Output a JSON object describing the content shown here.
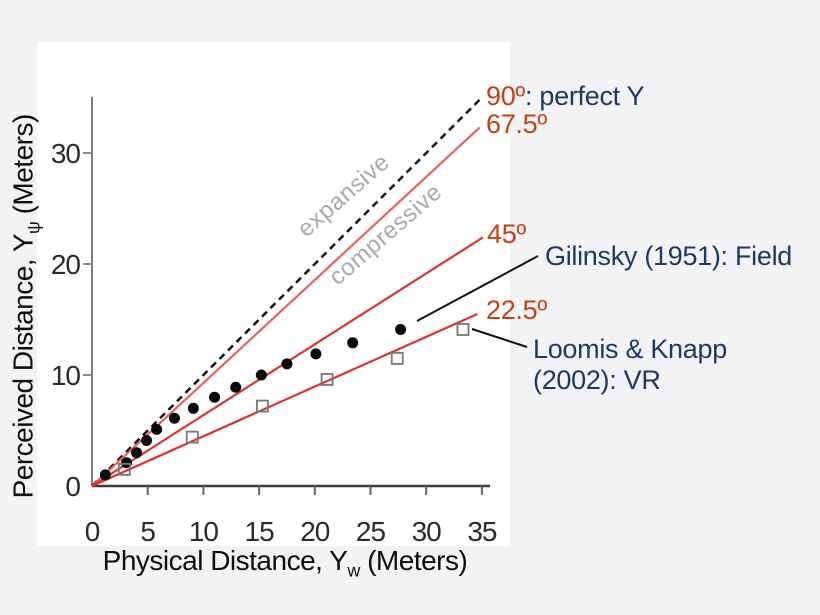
{
  "figure": {
    "bg_color": "#f3f3f5",
    "panel_color": "#ffffff"
  },
  "chart_data": {
    "type": "scatter",
    "title": "",
    "xlabel_pre": "Physical Distance, Y",
    "xlabel_sub": "w",
    "xlabel_post": " (Meters)",
    "ylabel_pre": "Perceived Distance, Y",
    "ylabel_sub": "ψ",
    "ylabel_post": " (Meters)",
    "xlim": [
      0,
      35.6
    ],
    "ylim": [
      0,
      35
    ],
    "x_ticks": [
      0,
      5,
      10,
      15,
      20,
      25,
      30,
      35
    ],
    "y_ticks": [
      0,
      10,
      20,
      30
    ],
    "grid": false,
    "legend_position": "annotated-right",
    "reference_lines": [
      {
        "name": "gain-90",
        "label": "90º",
        "label_suffix": ": perfect Y",
        "style": "dashed",
        "color": "#111111",
        "x": [
          0,
          34.8
        ],
        "y": [
          0,
          34.8
        ]
      },
      {
        "name": "gain-67.5",
        "label": "67.5º",
        "style": "solid",
        "color": "#e86060",
        "x": [
          0,
          34.8
        ],
        "y": [
          0,
          32.3
        ]
      },
      {
        "name": "gain-45",
        "label": "45º",
        "style": "solid",
        "color": "#dd3333",
        "x": [
          0,
          35.1
        ],
        "y": [
          0,
          22.4
        ]
      },
      {
        "name": "gain-22.5",
        "label": "22.5º",
        "style": "solid",
        "color": "#dd3333",
        "x": [
          0,
          34.6
        ],
        "y": [
          0,
          15.5
        ]
      }
    ],
    "series": [
      {
        "name": "Gilinsky (1951): Field",
        "marker": "filled-circle",
        "color": "#0a0a0a",
        "points": [
          [
            1.2,
            1.0
          ],
          [
            3.1,
            2.1
          ],
          [
            4.0,
            3.0
          ],
          [
            4.9,
            4.1
          ],
          [
            5.8,
            5.1
          ],
          [
            7.4,
            6.1
          ],
          [
            9.1,
            7.0
          ],
          [
            11.0,
            8.0
          ],
          [
            12.9,
            8.9
          ],
          [
            15.2,
            10.0
          ],
          [
            17.5,
            11.0
          ],
          [
            20.1,
            11.9
          ],
          [
            23.4,
            12.9
          ],
          [
            27.7,
            14.1
          ]
        ]
      },
      {
        "name": "Loomis & Knapp (2002): VR",
        "marker": "open-square",
        "color": "#777777",
        "points": [
          [
            2.9,
            1.5
          ],
          [
            9.0,
            4.4
          ],
          [
            15.3,
            7.2
          ],
          [
            21.1,
            9.6
          ],
          [
            27.4,
            11.5
          ],
          [
            33.3,
            14.1
          ]
        ]
      }
    ],
    "region_labels": [
      "expansive",
      "compressive"
    ]
  },
  "annotations": {
    "deg90": "90º",
    "deg90_rest": ": perfect Y",
    "deg67": "67.5º",
    "deg45": "45º",
    "deg22": "22.5º",
    "gilinsky": "Gilinsky (1951): Field",
    "loomis_line1": "Loomis & Knapp",
    "loomis_line2": "(2002): VR",
    "expansive": "expansive",
    "compressive": "compressive",
    "colors": {
      "angle": "#c8400e",
      "study": "#1e3a63",
      "region_label": "#a9a9a9",
      "red_line": "#dd3333"
    }
  }
}
